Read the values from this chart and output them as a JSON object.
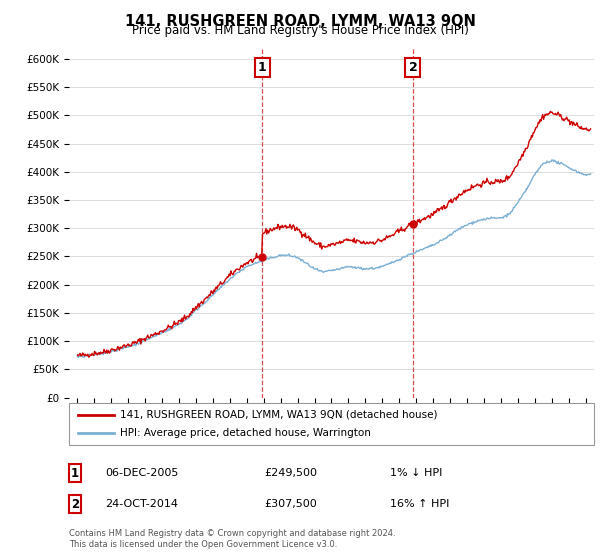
{
  "title": "141, RUSHGREEN ROAD, LYMM, WA13 9QN",
  "subtitle": "Price paid vs. HM Land Registry's House Price Index (HPI)",
  "legend_line1": "141, RUSHGREEN ROAD, LYMM, WA13 9QN (detached house)",
  "legend_line2": "HPI: Average price, detached house, Warrington",
  "sale1_date": "06-DEC-2005",
  "sale1_price": "£249,500",
  "sale1_hpi": "1% ↓ HPI",
  "sale1_year": 2005.92,
  "sale1_value": 249500,
  "sale2_date": "24-OCT-2014",
  "sale2_price": "£307,500",
  "sale2_hpi": "16% ↑ HPI",
  "sale2_year": 2014.81,
  "sale2_value": 307500,
  "footnote1": "Contains HM Land Registry data © Crown copyright and database right 2024.",
  "footnote2": "This data is licensed under the Open Government Licence v3.0.",
  "ylim": [
    0,
    620000
  ],
  "yticks": [
    0,
    50000,
    100000,
    150000,
    200000,
    250000,
    300000,
    350000,
    400000,
    450000,
    500000,
    550000,
    600000
  ],
  "ytick_labels": [
    "£0",
    "£50K",
    "£100K",
    "£150K",
    "£200K",
    "£250K",
    "£300K",
    "£350K",
    "£400K",
    "£450K",
    "£500K",
    "£550K",
    "£600K"
  ],
  "xlim_start": 1994.5,
  "xlim_end": 2025.5,
  "line_color_red": "#cc0000",
  "line_color_blue": "#7bafd4",
  "marker_color_red": "#cc0000",
  "vline_color": "#cc0000",
  "background_color": "#ffffff",
  "grid_color": "#dddddd",
  "years_hpi": [
    1995,
    1995.5,
    1996,
    1996.5,
    1997,
    1997.5,
    1998,
    1998.5,
    1999,
    1999.5,
    2000,
    2000.5,
    2001,
    2001.5,
    2002,
    2002.5,
    2003,
    2003.5,
    2004,
    2004.5,
    2005,
    2005.5,
    2006,
    2006.5,
    2007,
    2007.5,
    2008,
    2008.5,
    2009,
    2009.5,
    2010,
    2010.5,
    2011,
    2011.5,
    2012,
    2012.5,
    2013,
    2013.5,
    2014,
    2014.5,
    2015,
    2015.5,
    2016,
    2016.5,
    2017,
    2017.5,
    2018,
    2018.5,
    2019,
    2019.5,
    2020,
    2020.5,
    2021,
    2021.5,
    2022,
    2022.5,
    2023,
    2023.5,
    2024,
    2024.5,
    2025
  ],
  "hpi_values": [
    72000,
    73500,
    76000,
    78000,
    82000,
    86000,
    90000,
    95000,
    102000,
    108000,
    115000,
    122000,
    130000,
    140000,
    155000,
    168000,
    182000,
    196000,
    210000,
    222000,
    232000,
    238000,
    243000,
    248000,
    252000,
    252000,
    248000,
    238000,
    228000,
    222000,
    225000,
    228000,
    232000,
    230000,
    228000,
    229000,
    232000,
    238000,
    245000,
    252000,
    258000,
    264000,
    270000,
    278000,
    288000,
    298000,
    306000,
    312000,
    316000,
    318000,
    318000,
    325000,
    345000,
    368000,
    395000,
    415000,
    420000,
    415000,
    408000,
    400000,
    395000
  ]
}
